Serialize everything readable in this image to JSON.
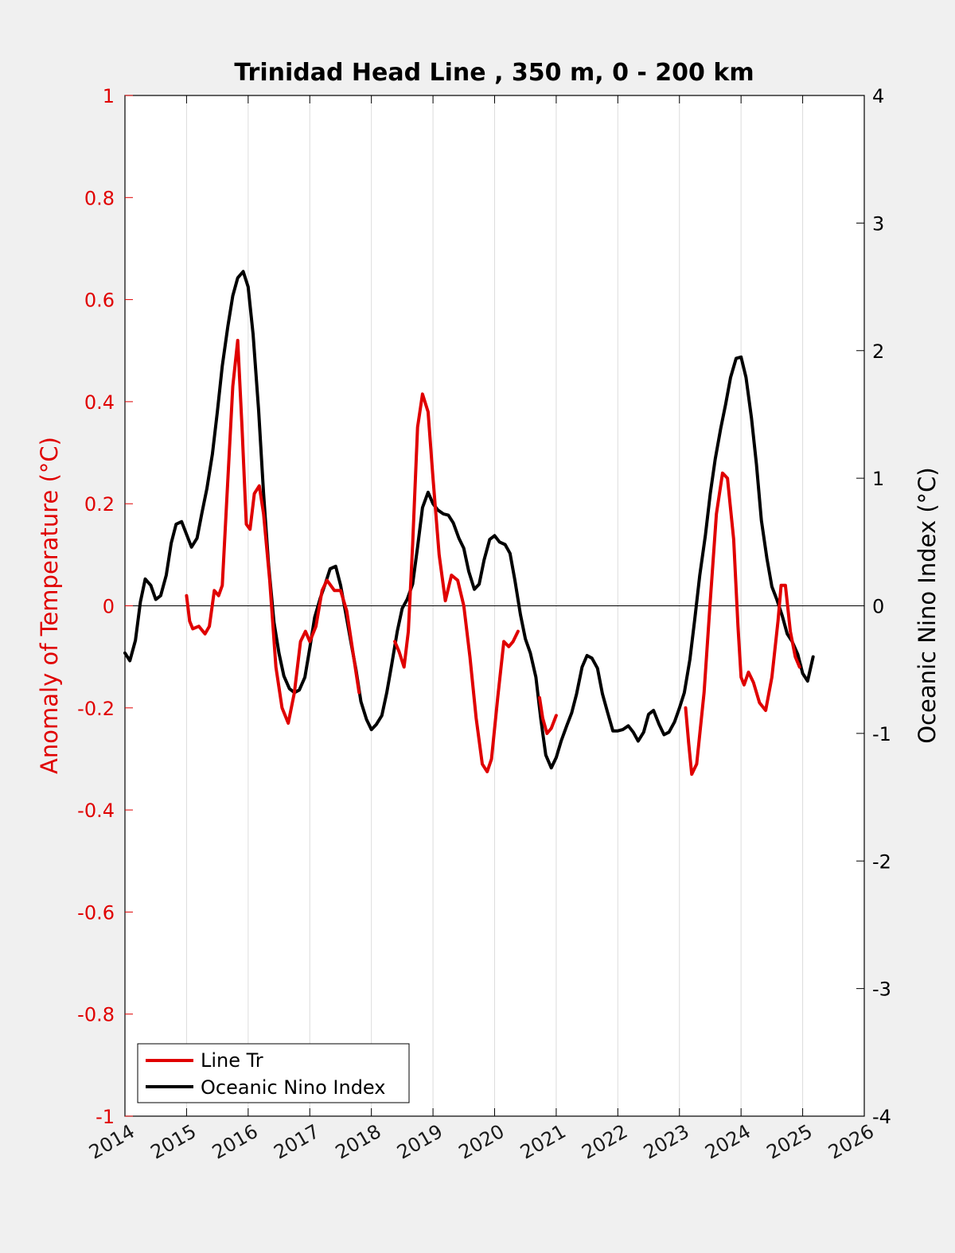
{
  "chart_data": {
    "type": "line",
    "title": "Trinidad Head Line , 350 m, 0 - 200 km",
    "ylabel_left": "Anomaly of Temperature (°C)",
    "ylabel_right": "Oceanic Nino Index (°C)",
    "xlim": [
      2014,
      2026
    ],
    "ylim_left": [
      -1,
      1
    ],
    "ylim_right": [
      -4,
      4
    ],
    "x_ticks": [
      "2014",
      "2015",
      "2016",
      "2017",
      "2018",
      "2019",
      "2020",
      "2021",
      "2022",
      "2023",
      "2024",
      "2025",
      "2026"
    ],
    "y_ticks_left": [
      "1",
      "0.8",
      "0.6",
      "0.4",
      "0.2",
      "0",
      "-0.2",
      "-0.4",
      "-0.6",
      "-0.8",
      "-1"
    ],
    "y_ticks_right": [
      "4",
      "3",
      "2",
      "1",
      "0",
      "-1",
      "-2",
      "-3",
      "-4"
    ],
    "grid": "vertical",
    "legend_position": "bottom-left",
    "colors": {
      "line_tr": "#e00000",
      "oni": "#000000"
    },
    "series": [
      {
        "name": "Line Tr",
        "axis": "left",
        "segments": [
          [
            [
              2015.0,
              0.02
            ],
            [
              2015.05,
              -0.03
            ],
            [
              2015.1,
              -0.045
            ],
            [
              2015.2,
              -0.04
            ],
            [
              2015.3,
              -0.055
            ],
            [
              2015.37,
              -0.04
            ],
            [
              2015.45,
              0.03
            ],
            [
              2015.52,
              0.02
            ],
            [
              2015.58,
              0.04
            ],
            [
              2015.65,
              0.2
            ],
            [
              2015.75,
              0.43
            ],
            [
              2015.83,
              0.52
            ],
            [
              2015.9,
              0.35
            ],
            [
              2015.97,
              0.16
            ],
            [
              2016.03,
              0.15
            ],
            [
              2016.1,
              0.22
            ],
            [
              2016.18,
              0.235
            ],
            [
              2016.25,
              0.18
            ],
            [
              2016.35,
              0.05
            ],
            [
              2016.45,
              -0.12
            ],
            [
              2016.55,
              -0.2
            ],
            [
              2016.65,
              -0.23
            ],
            [
              2016.75,
              -0.17
            ],
            [
              2016.85,
              -0.07
            ],
            [
              2016.93,
              -0.05
            ],
            [
              2017.0,
              -0.07
            ],
            [
              2017.1,
              -0.04
            ],
            [
              2017.2,
              0.03
            ],
            [
              2017.28,
              0.05
            ],
            [
              2017.4,
              0.03
            ],
            [
              2017.5,
              0.03
            ],
            [
              2017.6,
              -0.01
            ],
            [
              2017.7,
              -0.09
            ],
            [
              2017.8,
              -0.17
            ]
          ],
          [
            [
              2018.38,
              -0.07
            ],
            [
              2018.45,
              -0.09
            ],
            [
              2018.53,
              -0.12
            ],
            [
              2018.6,
              -0.05
            ],
            [
              2018.67,
              0.12
            ],
            [
              2018.75,
              0.35
            ],
            [
              2018.83,
              0.415
            ],
            [
              2018.92,
              0.38
            ],
            [
              2019.0,
              0.25
            ],
            [
              2019.1,
              0.1
            ],
            [
              2019.2,
              0.01
            ],
            [
              2019.3,
              0.06
            ],
            [
              2019.4,
              0.05
            ],
            [
              2019.5,
              0.0
            ],
            [
              2019.6,
              -0.1
            ],
            [
              2019.7,
              -0.22
            ],
            [
              2019.8,
              -0.31
            ],
            [
              2019.88,
              -0.325
            ],
            [
              2019.95,
              -0.3
            ],
            [
              2020.05,
              -0.18
            ],
            [
              2020.15,
              -0.07
            ],
            [
              2020.23,
              -0.08
            ],
            [
              2020.3,
              -0.07
            ],
            [
              2020.38,
              -0.05
            ]
          ],
          [
            [
              2020.73,
              -0.18
            ],
            [
              2020.78,
              -0.22
            ],
            [
              2020.85,
              -0.25
            ],
            [
              2020.92,
              -0.24
            ],
            [
              2021.0,
              -0.215
            ]
          ],
          [
            [
              2023.1,
              -0.2
            ],
            [
              2023.15,
              -0.27
            ],
            [
              2023.2,
              -0.33
            ],
            [
              2023.28,
              -0.31
            ],
            [
              2023.4,
              -0.17
            ],
            [
              2023.5,
              0.01
            ],
            [
              2023.6,
              0.18
            ],
            [
              2023.7,
              0.26
            ],
            [
              2023.78,
              0.25
            ],
            [
              2023.88,
              0.13
            ],
            [
              2023.95,
              -0.04
            ],
            [
              2024.0,
              -0.14
            ],
            [
              2024.05,
              -0.155
            ],
            [
              2024.12,
              -0.13
            ],
            [
              2024.2,
              -0.15
            ],
            [
              2024.3,
              -0.19
            ],
            [
              2024.4,
              -0.205
            ],
            [
              2024.5,
              -0.14
            ],
            [
              2024.6,
              -0.03
            ],
            [
              2024.65,
              0.04
            ],
            [
              2024.72,
              0.04
            ],
            [
              2024.8,
              -0.05
            ],
            [
              2024.88,
              -0.1
            ],
            [
              2024.95,
              -0.12
            ]
          ]
        ]
      },
      {
        "name": "Oceanic Nino Index",
        "axis": "right",
        "segments": [
          [
            [
              2014.0,
              -0.37
            ],
            [
              2014.08,
              -0.43
            ],
            [
              2014.17,
              -0.27
            ],
            [
              2014.25,
              0.03
            ],
            [
              2014.33,
              0.21
            ],
            [
              2014.42,
              0.16
            ],
            [
              2014.5,
              0.05
            ],
            [
              2014.58,
              0.08
            ],
            [
              2014.67,
              0.24
            ],
            [
              2014.75,
              0.49
            ],
            [
              2014.83,
              0.64
            ],
            [
              2014.92,
              0.66
            ],
            [
              2015.0,
              0.56
            ],
            [
              2015.08,
              0.46
            ],
            [
              2015.17,
              0.53
            ],
            [
              2015.25,
              0.73
            ],
            [
              2015.33,
              0.92
            ],
            [
              2015.42,
              1.19
            ],
            [
              2015.5,
              1.52
            ],
            [
              2015.58,
              1.88
            ],
            [
              2015.67,
              2.19
            ],
            [
              2015.75,
              2.43
            ],
            [
              2015.83,
              2.57
            ],
            [
              2015.92,
              2.62
            ],
            [
              2016.0,
              2.5
            ],
            [
              2016.08,
              2.13
            ],
            [
              2016.17,
              1.53
            ],
            [
              2016.25,
              0.88
            ],
            [
              2016.33,
              0.33
            ],
            [
              2016.42,
              -0.13
            ],
            [
              2016.5,
              -0.37
            ],
            [
              2016.58,
              -0.55
            ],
            [
              2016.67,
              -0.65
            ],
            [
              2016.75,
              -0.68
            ],
            [
              2016.83,
              -0.66
            ],
            [
              2016.92,
              -0.56
            ],
            [
              2017.0,
              -0.33
            ],
            [
              2017.08,
              -0.09
            ],
            [
              2017.17,
              0.06
            ],
            [
              2017.25,
              0.17
            ],
            [
              2017.33,
              0.29
            ],
            [
              2017.42,
              0.31
            ],
            [
              2017.5,
              0.16
            ],
            [
              2017.58,
              -0.05
            ],
            [
              2017.67,
              -0.29
            ],
            [
              2017.75,
              -0.5
            ],
            [
              2017.83,
              -0.75
            ],
            [
              2017.92,
              -0.89
            ],
            [
              2018.0,
              -0.97
            ],
            [
              2018.08,
              -0.93
            ],
            [
              2018.17,
              -0.86
            ],
            [
              2018.25,
              -0.68
            ],
            [
              2018.33,
              -0.46
            ],
            [
              2018.42,
              -0.2
            ],
            [
              2018.5,
              -0.02
            ],
            [
              2018.58,
              0.05
            ],
            [
              2018.67,
              0.17
            ],
            [
              2018.75,
              0.46
            ],
            [
              2018.83,
              0.77
            ],
            [
              2018.92,
              0.89
            ],
            [
              2019.0,
              0.8
            ],
            [
              2019.08,
              0.75
            ],
            [
              2019.17,
              0.72
            ],
            [
              2019.25,
              0.71
            ],
            [
              2019.33,
              0.65
            ],
            [
              2019.42,
              0.53
            ],
            [
              2019.5,
              0.45
            ],
            [
              2019.58,
              0.27
            ],
            [
              2019.67,
              0.13
            ],
            [
              2019.75,
              0.17
            ],
            [
              2019.83,
              0.36
            ],
            [
              2019.92,
              0.52
            ],
            [
              2020.0,
              0.55
            ],
            [
              2020.08,
              0.5
            ],
            [
              2020.17,
              0.48
            ],
            [
              2020.25,
              0.41
            ],
            [
              2020.33,
              0.2
            ],
            [
              2020.42,
              -0.07
            ],
            [
              2020.5,
              -0.26
            ],
            [
              2020.58,
              -0.37
            ],
            [
              2020.67,
              -0.56
            ],
            [
              2020.75,
              -0.89
            ],
            [
              2020.83,
              -1.17
            ],
            [
              2020.92,
              -1.27
            ],
            [
              2021.0,
              -1.19
            ],
            [
              2021.08,
              -1.06
            ],
            [
              2021.17,
              -0.94
            ],
            [
              2021.25,
              -0.84
            ],
            [
              2021.33,
              -0.69
            ],
            [
              2021.42,
              -0.48
            ],
            [
              2021.5,
              -0.39
            ],
            [
              2021.58,
              -0.41
            ],
            [
              2021.67,
              -0.49
            ],
            [
              2021.75,
              -0.69
            ],
            [
              2021.83,
              -0.83
            ],
            [
              2021.92,
              -0.98
            ],
            [
              2022.0,
              -0.98
            ],
            [
              2022.08,
              -0.97
            ],
            [
              2022.17,
              -0.94
            ],
            [
              2022.25,
              -0.99
            ],
            [
              2022.33,
              -1.06
            ],
            [
              2022.42,
              -0.99
            ],
            [
              2022.5,
              -0.85
            ],
            [
              2022.58,
              -0.82
            ],
            [
              2022.67,
              -0.93
            ],
            [
              2022.75,
              -1.01
            ],
            [
              2022.83,
              -0.99
            ],
            [
              2022.92,
              -0.91
            ],
            [
              2023.0,
              -0.8
            ],
            [
              2023.08,
              -0.68
            ],
            [
              2023.17,
              -0.42
            ],
            [
              2023.25,
              -0.1
            ],
            [
              2023.33,
              0.24
            ],
            [
              2023.42,
              0.55
            ],
            [
              2023.5,
              0.88
            ],
            [
              2023.58,
              1.15
            ],
            [
              2023.67,
              1.39
            ],
            [
              2023.75,
              1.58
            ],
            [
              2023.83,
              1.79
            ],
            [
              2023.92,
              1.94
            ],
            [
              2024.0,
              1.95
            ],
            [
              2024.08,
              1.79
            ],
            [
              2024.17,
              1.47
            ],
            [
              2024.25,
              1.11
            ],
            [
              2024.33,
              0.67
            ],
            [
              2024.42,
              0.37
            ],
            [
              2024.5,
              0.15
            ],
            [
              2024.58,
              0.05
            ],
            [
              2024.67,
              -0.08
            ],
            [
              2024.75,
              -0.22
            ],
            [
              2024.83,
              -0.28
            ],
            [
              2024.92,
              -0.38
            ],
            [
              2025.0,
              -0.53
            ],
            [
              2025.08,
              -0.59
            ],
            [
              2025.17,
              -0.4
            ]
          ]
        ]
      }
    ]
  }
}
